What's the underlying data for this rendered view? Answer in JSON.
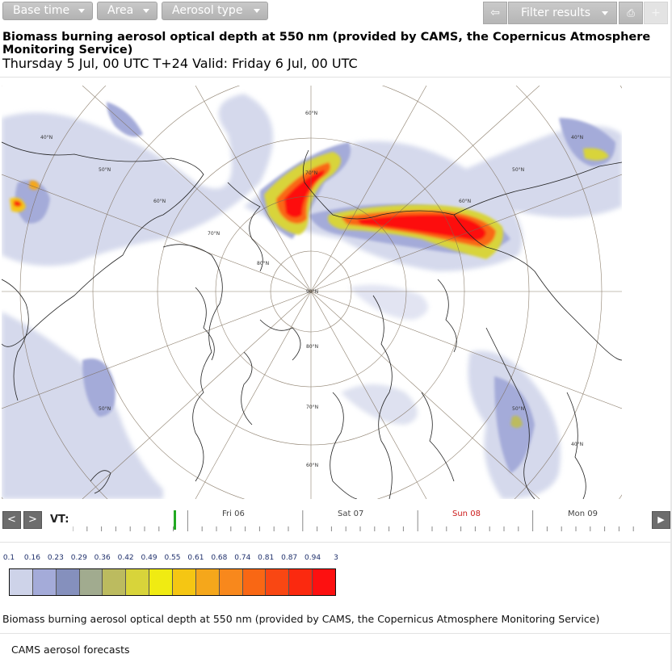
{
  "toolbar": {
    "base_time_label": "Base time",
    "area_label": "Area",
    "aerosol_type_label": "Aerosol type",
    "back_glyph": "⇦",
    "filter_label": "Filter results",
    "print_glyph": "⎙",
    "add_glyph": "+"
  },
  "header": {
    "title": "Biomass burning aerosol optical depth at 550 nm (provided by CAMS, the Copernicus Atmosphere Monitoring Service)",
    "subtitle": "Thursday 5 Jul, 00 UTC T+24 Valid: Friday 6 Jul, 00 UTC"
  },
  "map": {
    "latitude_labels": [
      "40°N",
      "50°N",
      "60°N",
      "70°N",
      "80°N",
      "90°N"
    ],
    "colors": {
      "land_outline": "#222222",
      "grid": "#7a6a55"
    }
  },
  "timeline": {
    "prev_glyph": "<",
    "next_glyph": ">",
    "play_glyph": "▶",
    "vt_label": "VT:",
    "days": [
      {
        "label": "Fri 06",
        "highlight": false
      },
      {
        "label": "Sat 07",
        "highlight": false
      },
      {
        "label": "Sun 08",
        "highlight": true
      },
      {
        "label": "Mon 09",
        "highlight": false
      }
    ],
    "colors": {
      "current_marker": "#22aa22",
      "sunday": "#cc1b1b"
    }
  },
  "legend": {
    "values": [
      "0.1",
      "0.16",
      "0.23",
      "0.29",
      "0.36",
      "0.42",
      "0.49",
      "0.55",
      "0.61",
      "0.68",
      "0.74",
      "0.81",
      "0.87",
      "0.94",
      "3"
    ],
    "colors": [
      "#ced3e9",
      "#a4abd9",
      "#8590bd",
      "#a1ab8f",
      "#bcbb5f",
      "#d8d43a",
      "#f0eb12",
      "#f5c613",
      "#f5a71b",
      "#f8881c",
      "#f96714",
      "#f94713",
      "#fb290f",
      "#fd1010"
    ]
  },
  "caption": "Biomass burning aerosol optical depth at 550 nm (provided by CAMS, the Copernicus Atmosphere Monitoring Service)",
  "footer": "CAMS aerosol forecasts"
}
